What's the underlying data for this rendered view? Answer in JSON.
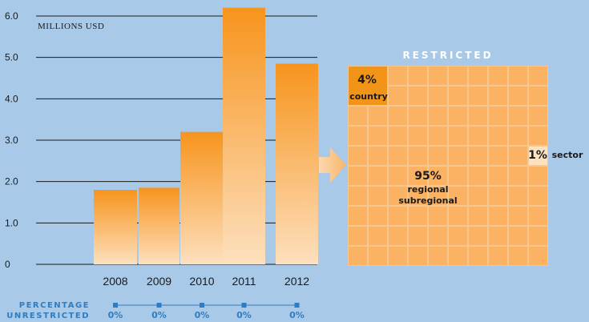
{
  "chart_data": [
    {
      "type": "bar",
      "ylabel": "MILLIONS USD",
      "ylim": [
        0,
        6.0
      ],
      "yticks": [
        "0",
        "1.0",
        "2.0",
        "3.0",
        "4.0",
        "5.0",
        "6.0"
      ],
      "categories": [
        "2008",
        "2009",
        "2010",
        "2011",
        "2012"
      ],
      "values": [
        1.8,
        1.85,
        3.2,
        6.2,
        4.85
      ],
      "percentage_unrestricted": {
        "title_line1": "PERCENTAGE",
        "title_line2": "UNRESTRICTED",
        "values": [
          "0%",
          "0%",
          "0%",
          "0%",
          "0%"
        ]
      },
      "colors": {
        "bar_top": "#f7941d",
        "bar_bottom": "#fde0be",
        "background": "#a9c9e8",
        "accent": "#2f7cc0"
      }
    },
    {
      "type": "waffle",
      "title": "RESTRICTED",
      "grid": [
        10,
        10
      ],
      "segments": [
        {
          "value": 4,
          "pct_label": "4%",
          "label_lines": [
            "country"
          ],
          "color": "#f29418"
        },
        {
          "value": 95,
          "pct_label": "95%",
          "label_lines": [
            "regional",
            "subregional"
          ],
          "color": "#fbb263"
        },
        {
          "value": 1,
          "pct_label": "1%",
          "label_lines": [
            "sector"
          ],
          "color": "#fde2c2"
        }
      ]
    }
  ]
}
